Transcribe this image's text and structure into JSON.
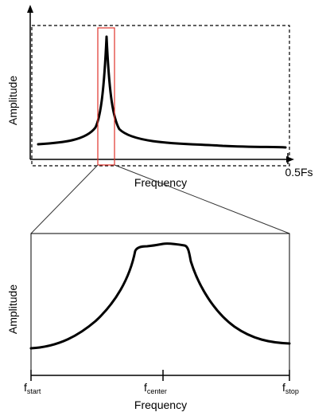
{
  "top_panel": {
    "ylabel": "Amplitude",
    "xlabel": "Frequency",
    "end_tick_label": "0.5Fs"
  },
  "bottom_panel": {
    "ylabel": "Amplitude",
    "xlabel": "Frequency",
    "ticks": [
      {
        "main": "f",
        "sub": "start"
      },
      {
        "main": "f",
        "sub": "center"
      },
      {
        "main": "f",
        "sub": "stop"
      }
    ]
  },
  "colors": {
    "line": "#000000",
    "zoom_box": "#e0332a",
    "connector": "#333333"
  }
}
